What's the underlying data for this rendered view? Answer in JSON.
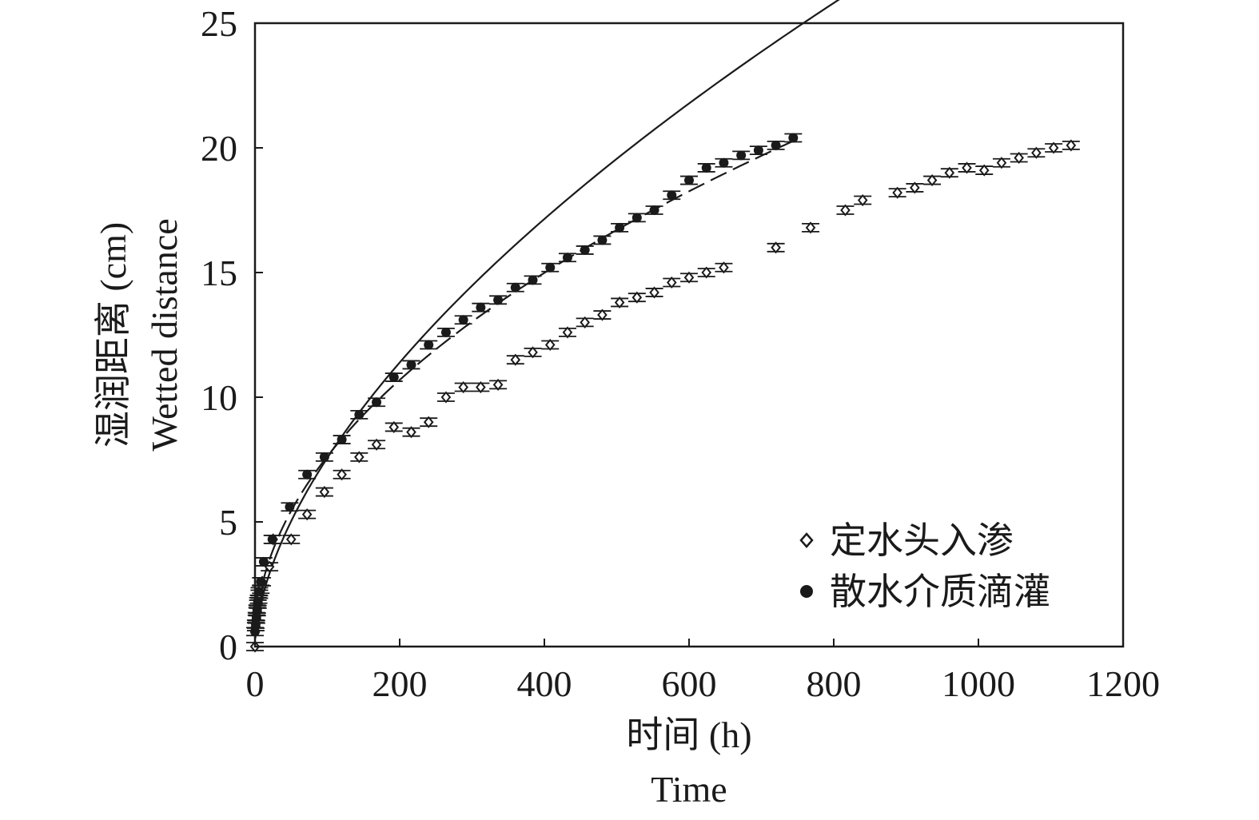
{
  "chart_data": {
    "type": "scatter",
    "xlabel_cn": "时间 (h)",
    "xlabel_en": "Time",
    "ylabel_cn": "湿润距离 (cm)",
    "ylabel_en": "Wetted distance",
    "xlim": [
      0,
      1200
    ],
    "ylim": [
      0,
      25
    ],
    "x_ticks": [
      0,
      200,
      400,
      600,
      800,
      1000,
      1200
    ],
    "y_ticks": [
      0,
      5,
      10,
      15,
      20,
      25
    ],
    "x_tick_labels": [
      "0",
      "200",
      "400",
      "600",
      "800",
      "1000",
      "1200"
    ],
    "y_tick_labels": [
      "0",
      "5",
      "10",
      "15",
      "20",
      "25"
    ],
    "grid": false,
    "legend_position": "bottom-right",
    "series": [
      {
        "name": "定水头入渗",
        "marker": "open-diamond",
        "line": "solid",
        "fit_a": 0.5,
        "fit_b": 0.59,
        "points": [
          [
            0,
            0
          ],
          [
            1,
            0.8
          ],
          [
            2,
            1.1
          ],
          [
            3,
            1.4
          ],
          [
            4,
            1.7
          ],
          [
            5,
            1.9
          ],
          [
            6,
            2.1
          ],
          [
            8,
            2.3
          ],
          [
            10,
            2.6
          ],
          [
            20,
            3.2
          ],
          [
            25,
            4.3
          ],
          [
            50,
            4.3
          ],
          [
            72,
            5.3
          ],
          [
            96,
            6.2
          ],
          [
            120,
            6.9
          ],
          [
            144,
            7.6
          ],
          [
            168,
            8.1
          ],
          [
            192,
            8.8
          ],
          [
            216,
            8.6
          ],
          [
            240,
            9.0
          ],
          [
            264,
            10.0
          ],
          [
            288,
            10.4
          ],
          [
            312,
            10.4
          ],
          [
            336,
            10.5
          ],
          [
            360,
            11.5
          ],
          [
            384,
            11.8
          ],
          [
            408,
            12.1
          ],
          [
            432,
            12.6
          ],
          [
            456,
            13.0
          ],
          [
            480,
            13.3
          ],
          [
            504,
            13.8
          ],
          [
            528,
            14.0
          ],
          [
            552,
            14.2
          ],
          [
            576,
            14.6
          ],
          [
            600,
            14.8
          ],
          [
            624,
            15.0
          ],
          [
            648,
            15.2
          ],
          [
            720,
            16.0
          ],
          [
            768,
            16.8
          ],
          [
            816,
            17.5
          ],
          [
            840,
            17.9
          ],
          [
            888,
            18.2
          ],
          [
            912,
            18.4
          ],
          [
            936,
            18.7
          ],
          [
            960,
            19.0
          ],
          [
            984,
            19.2
          ],
          [
            1008,
            19.1
          ],
          [
            1032,
            19.4
          ],
          [
            1056,
            19.6
          ],
          [
            1080,
            19.8
          ],
          [
            1104,
            20.0
          ],
          [
            1128,
            20.1
          ]
        ]
      },
      {
        "name": "散水介质滴灌",
        "marker": "filled-circle",
        "line": "dashed",
        "fit_a": 0.81,
        "fit_b": 0.487,
        "points": [
          [
            0,
            0.6
          ],
          [
            1,
            0.9
          ],
          [
            2,
            1.2
          ],
          [
            3,
            1.5
          ],
          [
            4,
            1.8
          ],
          [
            6,
            2.2
          ],
          [
            8,
            2.6
          ],
          [
            12,
            3.4
          ],
          [
            24,
            4.3
          ],
          [
            48,
            5.6
          ],
          [
            72,
            6.9
          ],
          [
            96,
            7.6
          ],
          [
            120,
            8.3
          ],
          [
            144,
            9.3
          ],
          [
            168,
            9.8
          ],
          [
            192,
            10.8
          ],
          [
            216,
            11.3
          ],
          [
            240,
            12.1
          ],
          [
            264,
            12.6
          ],
          [
            288,
            13.1
          ],
          [
            312,
            13.6
          ],
          [
            336,
            13.9
          ],
          [
            360,
            14.4
          ],
          [
            384,
            14.7
          ],
          [
            408,
            15.2
          ],
          [
            432,
            15.6
          ],
          [
            456,
            15.9
          ],
          [
            480,
            16.3
          ],
          [
            504,
            16.8
          ],
          [
            528,
            17.2
          ],
          [
            552,
            17.5
          ],
          [
            576,
            18.1
          ],
          [
            600,
            18.7
          ],
          [
            624,
            19.2
          ],
          [
            648,
            19.4
          ],
          [
            672,
            19.7
          ],
          [
            696,
            19.9
          ],
          [
            720,
            20.1
          ],
          [
            744,
            20.4
          ]
        ]
      }
    ]
  }
}
